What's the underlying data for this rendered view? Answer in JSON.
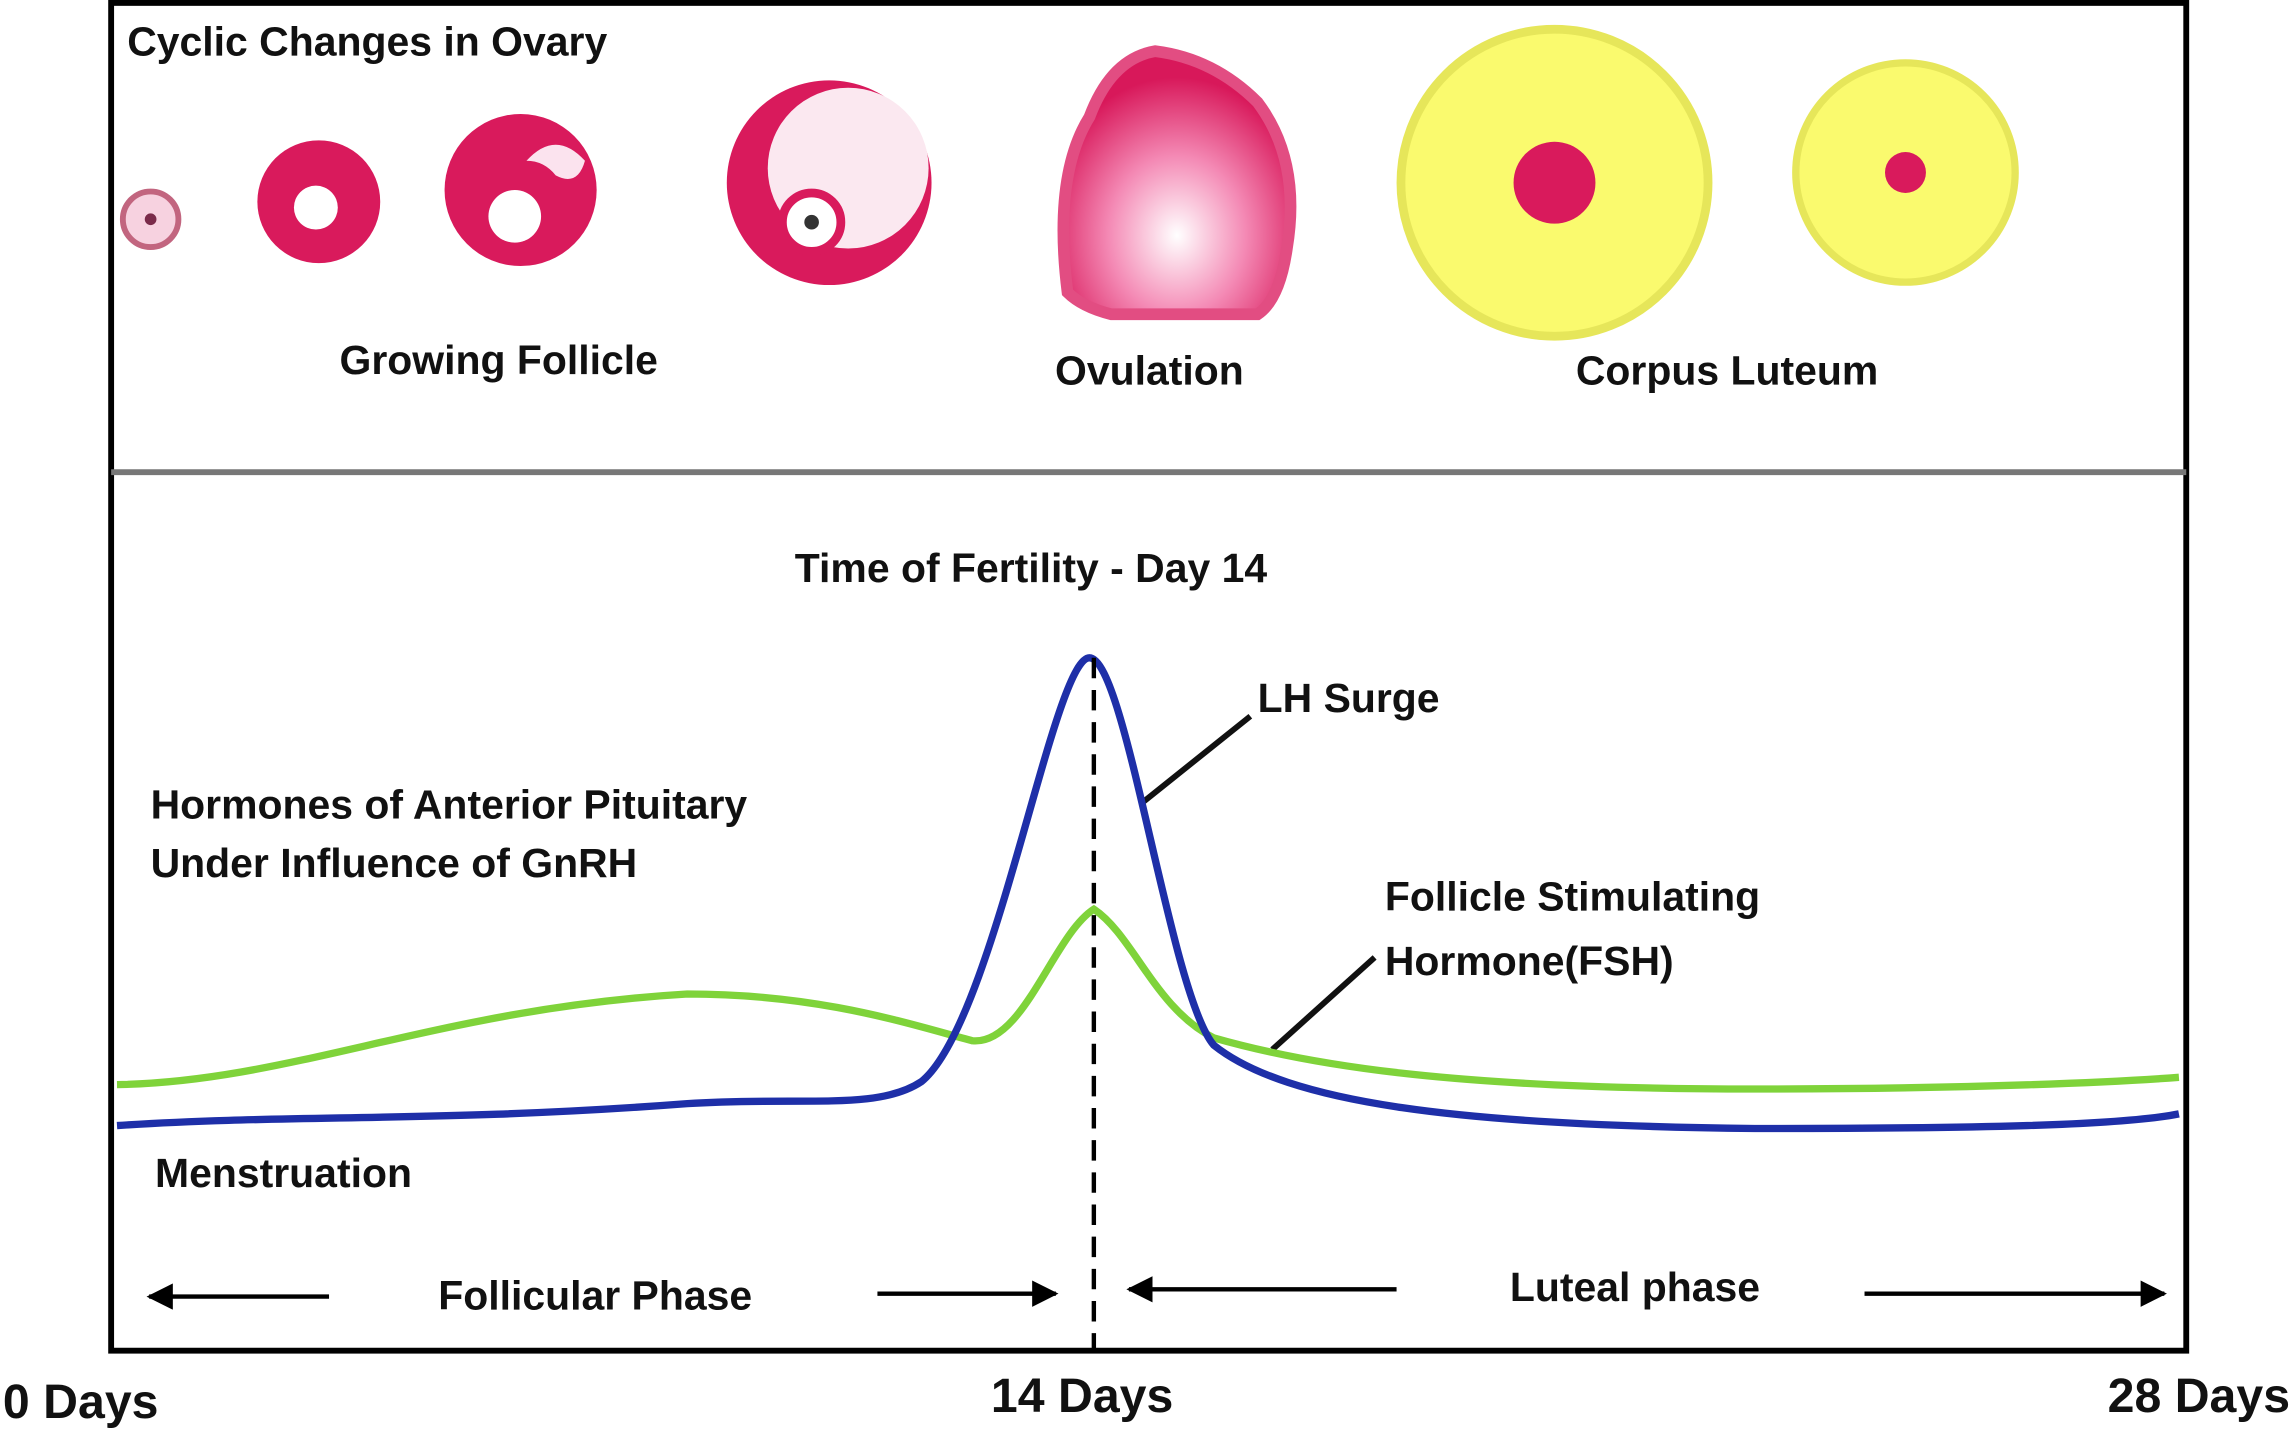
{
  "top_panel": {
    "title": "Cyclic Changes in Ovary",
    "labels": [
      "Growing Follicle",
      "Ovulation",
      "Corpus Luteum"
    ]
  },
  "bottom_panel": {
    "title": "Time of Fertility - Day 14",
    "hormones_caption": [
      "Hormones of Anterior Pituitary",
      "Under Influence of GnRH"
    ],
    "lh_label": "LH Surge",
    "fsh_label": [
      "Follicle Stimulating",
      "Hormone(FSH)"
    ],
    "menstruation": "Menstruation",
    "phases": [
      "Follicular Phase",
      "Luteal phase"
    ]
  },
  "x_axis": [
    "0 Days",
    "14 Days",
    "28 Days"
  ]
}
